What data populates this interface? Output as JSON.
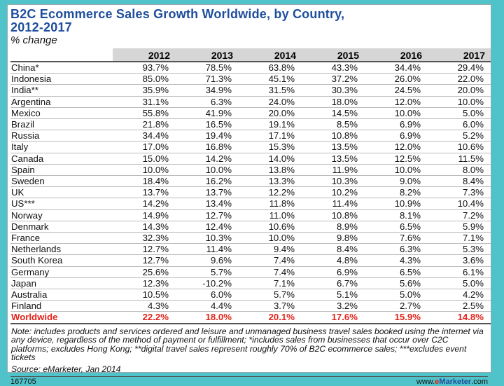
{
  "title_line1": "B2C Ecommerce Sales Growth Worldwide, by Country,",
  "title_line2": "2012-2017",
  "subtitle": "% change",
  "note": "Note: includes products and services ordered and leisure and unmanaged business travel sales booked using the internet via any device, regardless of the method of payment or fulfillment; *includes sales from businesses that occur over C2C platforms; excludes Hong Kong; **digital travel sales represent roughly 70% of B2C ecommerce sales; ***excludes event tickets",
  "source": "Source: eMarketer, Jan 2014",
  "chart_id": "167705",
  "brand": {
    "prefix": "www.",
    "e": "e",
    "marketer": "Marketer",
    "suffix": ".com"
  },
  "colors": {
    "title": "#1f4e9c",
    "worldwide": "#e2231a",
    "background": "#4fc3c9",
    "header_bg": "#d6d6d6"
  },
  "chart_data": {
    "type": "table",
    "columns": [
      "2012",
      "2013",
      "2014",
      "2015",
      "2016",
      "2017"
    ],
    "rows": [
      {
        "country": "China*",
        "values": [
          "93.7%",
          "78.5%",
          "63.8%",
          "43.3%",
          "34.4%",
          "29.4%"
        ]
      },
      {
        "country": "Indonesia",
        "values": [
          "85.0%",
          "71.3%",
          "45.1%",
          "37.2%",
          "26.0%",
          "22.0%"
        ]
      },
      {
        "country": "India**",
        "values": [
          "35.9%",
          "34.9%",
          "31.5%",
          "30.3%",
          "24.5%",
          "20.0%"
        ]
      },
      {
        "country": "Argentina",
        "values": [
          "31.1%",
          "6.3%",
          "24.0%",
          "18.0%",
          "12.0%",
          "10.0%"
        ]
      },
      {
        "country": "Mexico",
        "values": [
          "55.8%",
          "41.9%",
          "20.0%",
          "14.5%",
          "10.0%",
          "5.0%"
        ]
      },
      {
        "country": "Brazil",
        "values": [
          "21.8%",
          "16.5%",
          "19.1%",
          "8.5%",
          "6.9%",
          "6.0%"
        ]
      },
      {
        "country": "Russia",
        "values": [
          "34.4%",
          "19.4%",
          "17.1%",
          "10.8%",
          "6.9%",
          "5.2%"
        ]
      },
      {
        "country": "Italy",
        "values": [
          "17.0%",
          "16.8%",
          "15.3%",
          "13.5%",
          "12.0%",
          "10.6%"
        ]
      },
      {
        "country": "Canada",
        "values": [
          "15.0%",
          "14.2%",
          "14.0%",
          "13.5%",
          "12.5%",
          "11.5%"
        ]
      },
      {
        "country": "Spain",
        "values": [
          "10.0%",
          "10.0%",
          "13.8%",
          "11.9%",
          "10.0%",
          "8.0%"
        ]
      },
      {
        "country": "Sweden",
        "values": [
          "18.4%",
          "16.2%",
          "13.3%",
          "10.3%",
          "9.0%",
          "8.4%"
        ]
      },
      {
        "country": "UK",
        "values": [
          "13.7%",
          "13.7%",
          "12.2%",
          "10.2%",
          "8.2%",
          "7.3%"
        ]
      },
      {
        "country": "US***",
        "values": [
          "14.2%",
          "13.4%",
          "11.8%",
          "11.4%",
          "10.9%",
          "10.4%"
        ]
      },
      {
        "country": "Norway",
        "values": [
          "14.9%",
          "12.7%",
          "11.0%",
          "10.8%",
          "8.1%",
          "7.2%"
        ]
      },
      {
        "country": "Denmark",
        "values": [
          "14.3%",
          "12.4%",
          "10.6%",
          "8.9%",
          "6.5%",
          "5.9%"
        ]
      },
      {
        "country": "France",
        "values": [
          "32.3%",
          "10.3%",
          "10.0%",
          "9.8%",
          "7.6%",
          "7.1%"
        ]
      },
      {
        "country": "Netherlands",
        "values": [
          "12.7%",
          "11.4%",
          "9.4%",
          "8.4%",
          "6.3%",
          "5.3%"
        ]
      },
      {
        "country": "South Korea",
        "values": [
          "12.7%",
          "9.6%",
          "7.4%",
          "4.8%",
          "4.3%",
          "3.6%"
        ]
      },
      {
        "country": "Germany",
        "values": [
          "25.6%",
          "5.7%",
          "7.4%",
          "6.9%",
          "6.5%",
          "6.1%"
        ]
      },
      {
        "country": "Japan",
        "values": [
          "12.3%",
          "-10.2%",
          "7.1%",
          "6.7%",
          "5.6%",
          "5.0%"
        ]
      },
      {
        "country": "Australia",
        "values": [
          "10.5%",
          "6.0%",
          "5.7%",
          "5.1%",
          "5.0%",
          "4.2%"
        ]
      },
      {
        "country": "Finland",
        "values": [
          "4.3%",
          "4.4%",
          "3.7%",
          "3.2%",
          "2.7%",
          "2.5%"
        ]
      }
    ],
    "total_row": {
      "country": "Worldwide",
      "values": [
        "22.2%",
        "18.0%",
        "20.1%",
        "17.6%",
        "15.9%",
        "14.8%"
      ]
    }
  }
}
